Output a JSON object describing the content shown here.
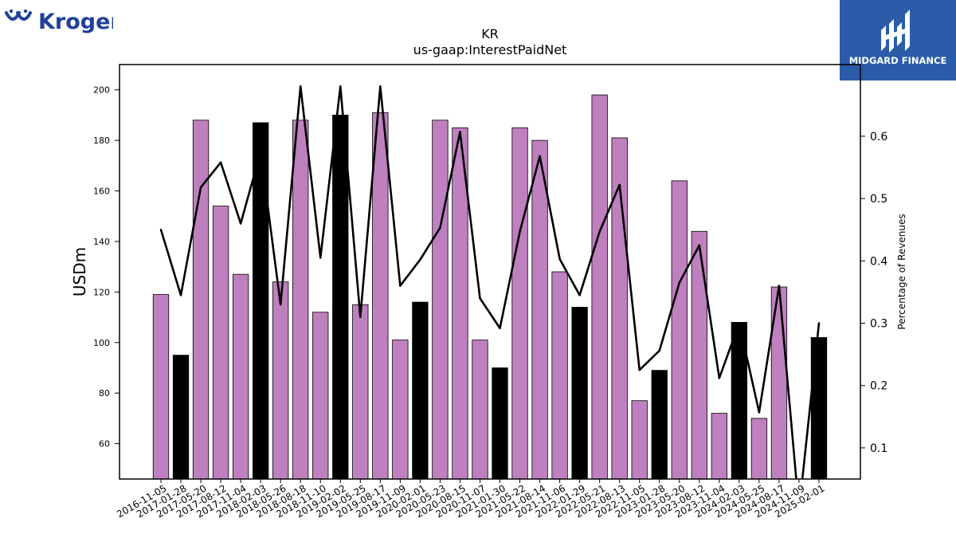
{
  "branding": {
    "left_logo_text": "Kroger",
    "right_logo_text": "MIDGARD FINANCE",
    "right_logo_color": "#2a5caa",
    "left_logo_color": "#21409a"
  },
  "chart_data": {
    "type": "bar",
    "title": "KR",
    "subtitle": "us-gaap:InterestPaidNet",
    "ylabel": "USDm",
    "y2label": "Percentage of Revenues",
    "ylim": [
      46,
      210
    ],
    "y2lim": [
      0.05,
      0.715
    ],
    "yticks": [
      60,
      80,
      100,
      120,
      140,
      160,
      180,
      200
    ],
    "y2ticks": [
      0.1,
      0.2,
      0.3,
      0.4,
      0.5,
      0.6
    ],
    "y2ticklabels": [
      "0.1",
      "0.2",
      "0.3",
      "0.4",
      "0.5",
      "0.6"
    ],
    "colors": {
      "bar_default": "#bf80bf",
      "bar_highlight": "#000000",
      "line": "#000000"
    },
    "categories": [
      "2016-11-05",
      "2017-01-28",
      "2017-05-20",
      "2017-08-12",
      "2017-11-04",
      "2018-02-03",
      "2018-05-26",
      "2018-08-18",
      "2018-11-10",
      "2019-02-02",
      "2019-05-25",
      "2019-08-17",
      "2019-11-09",
      "2020-02-01",
      "2020-05-23",
      "2020-08-15",
      "2020-11-07",
      "2021-01-30",
      "2021-05-22",
      "2021-08-14",
      "2021-11-06",
      "2022-01-29",
      "2022-05-21",
      "2022-08-13",
      "2022-11-05",
      "2023-01-28",
      "2023-05-20",
      "2023-08-12",
      "2023-11-04",
      "2024-02-03",
      "2024-05-25",
      "2024-08-17",
      "2024-11-09",
      "2025-02-01"
    ],
    "series": [
      {
        "kind": "bar",
        "values": [
          119,
          95,
          188,
          154,
          127,
          187,
          124,
          188,
          112,
          190,
          115,
          191,
          101,
          116,
          188,
          185,
          101,
          90,
          185,
          180,
          128,
          114,
          198,
          181,
          77,
          89,
          164,
          144,
          72,
          108,
          70,
          122,
          null,
          102
        ],
        "highlight": [
          false,
          true,
          false,
          false,
          false,
          true,
          false,
          false,
          false,
          true,
          false,
          false,
          false,
          true,
          false,
          false,
          false,
          true,
          false,
          false,
          false,
          true,
          false,
          false,
          false,
          true,
          false,
          false,
          false,
          true,
          false,
          false,
          false,
          true
        ]
      },
      {
        "kind": "line",
        "axis": "right",
        "values": [
          0.45,
          0.345,
          0.518,
          0.558,
          0.46,
          0.575,
          0.33,
          0.68,
          0.405,
          0.68,
          0.31,
          0.68,
          0.36,
          0.402,
          0.453,
          0.607,
          0.34,
          0.292,
          0.447,
          0.568,
          0.403,
          0.345,
          0.447,
          0.522,
          0.225,
          0.256,
          0.365,
          0.425,
          0.212,
          0.3,
          0.157,
          0.36,
          0.0,
          0.3
        ]
      }
    ]
  }
}
